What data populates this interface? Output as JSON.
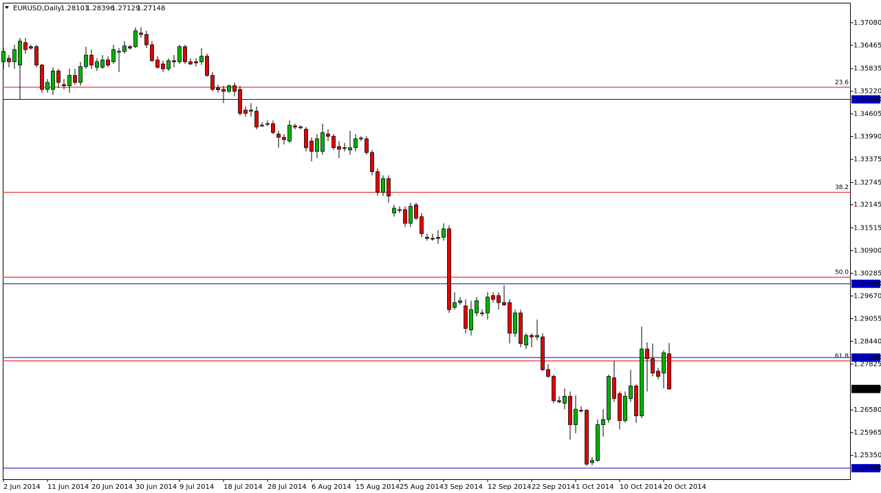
{
  "chart_data": {
    "type": "candlestick",
    "title": "EURUSD,Daily",
    "categories": [
      "2 Jun 2014",
      null,
      null,
      null,
      null,
      null,
      null,
      null,
      "11 Jun 2014",
      null,
      null,
      null,
      null,
      null,
      null,
      null,
      "20 Jun 2014",
      null,
      null,
      null,
      null,
      null,
      null,
      null,
      "30 Jun 2014",
      null,
      null,
      null,
      null,
      null,
      null,
      null,
      "9 Jul 2014",
      null,
      null,
      null,
      null,
      null,
      null,
      null,
      "18 Jul 2014",
      null,
      null,
      null,
      null,
      null,
      null,
      null,
      "28 Jul 2014",
      null,
      null,
      null,
      null,
      null,
      null,
      null,
      "6 Aug 2014",
      null,
      null,
      null,
      null,
      null,
      null,
      null,
      "15 Aug 2014",
      null,
      null,
      null,
      null,
      null,
      null,
      null,
      "25 Aug 2014",
      null,
      null,
      null,
      null,
      null,
      null,
      null,
      "3 Sep 2014",
      null,
      null,
      null,
      null,
      null,
      null,
      null,
      "12 Sep 2014",
      null,
      null,
      null,
      null,
      null,
      null,
      null,
      "22 Sep 2014",
      null,
      null,
      null,
      null,
      null,
      null,
      null,
      "1 Oct 2014",
      null,
      null,
      null,
      null,
      null,
      null,
      null,
      "10 Oct 2014",
      null,
      null,
      null,
      null,
      null,
      null,
      null,
      "20 Oct 2014",
      null
    ],
    "open": [
      1.3602,
      1.3611,
      1.3602,
      1.3593,
      1.3654,
      1.3643,
      1.3643,
      1.3593,
      1.3527,
      1.3527,
      1.3577,
      1.354,
      1.3537,
      1.3565,
      1.3546,
      1.3589,
      1.362,
      1.3587,
      1.3587,
      1.3607,
      1.3602,
      1.363,
      1.363,
      1.3643,
      1.3643,
      1.368,
      1.3676,
      1.3648,
      1.3607,
      1.3596,
      1.3583,
      1.3605,
      1.3602,
      1.3643,
      1.3602,
      1.3602,
      1.3602,
      1.3617,
      1.3565,
      1.3531,
      1.3527,
      1.3522,
      1.3537,
      1.3527,
      1.3471,
      1.3468,
      1.3468,
      1.343,
      1.3434,
      1.3434,
      1.3406,
      1.3397,
      1.3387,
      1.3428,
      1.3425,
      1.3419,
      1.3387,
      1.3359,
      1.3359,
      1.3406,
      1.34,
      1.3372,
      1.3369,
      1.3363,
      1.3369,
      1.3393,
      1.3393,
      1.3356,
      1.3304,
      1.3248,
      1.3285,
      1.3192,
      1.3201,
      1.3201,
      1.3164,
      1.3214,
      1.3182,
      1.3126,
      1.3123,
      1.3123,
      1.3126,
      1.3149,
      1.2936,
      1.2949,
      1.294,
      1.2875,
      1.2921,
      1.2921,
      1.2921,
      1.2968,
      1.2968,
      1.2949,
      1.2949,
      1.2866,
      1.2921,
      1.2834,
      1.286,
      1.2856,
      1.2856,
      1.2767,
      1.2749,
      1.2683,
      1.2676,
      1.2695,
      1.2618,
      1.2657,
      1.2657,
      1.2515,
      1.2521,
      1.2618,
      1.2632,
      1.2745,
      1.2702,
      1.2629,
      1.2689,
      1.2723,
      1.2642,
      1.2823,
      1.2797,
      1.2763,
      1.2758,
      1.28101
    ],
    "high": [
      1.3639,
      1.362,
      1.3648,
      1.3667,
      1.3667,
      1.3648,
      1.3648,
      1.3596,
      1.3555,
      1.3587,
      1.3583,
      1.3555,
      1.3583,
      1.3583,
      1.3602,
      1.3643,
      1.3635,
      1.3611,
      1.362,
      1.3617,
      1.3648,
      1.3639,
      1.3658,
      1.3648,
      1.3695,
      1.3695,
      1.3686,
      1.3658,
      1.3617,
      1.3605,
      1.3611,
      1.362,
      1.3648,
      1.3648,
      1.3611,
      1.3611,
      1.3639,
      1.3624,
      1.3574,
      1.354,
      1.3537,
      1.354,
      1.3546,
      1.3537,
      1.3481,
      1.349,
      1.3481,
      1.3438,
      1.3443,
      1.3443,
      1.3415,
      1.3406,
      1.3443,
      1.3434,
      1.343,
      1.3425,
      1.3397,
      1.3406,
      1.3434,
      1.3419,
      1.3406,
      1.3387,
      1.3382,
      1.3415,
      1.3406,
      1.34,
      1.34,
      1.3363,
      1.3313,
      1.3294,
      1.3294,
      1.3214,
      1.321,
      1.321,
      1.322,
      1.322,
      1.3192,
      1.3136,
      1.3136,
      1.3145,
      1.3164,
      1.3158,
      1.2977,
      1.2964,
      1.2958,
      1.2954,
      1.2964,
      1.293,
      1.2977,
      1.2977,
      1.2977,
      1.2996,
      1.2958,
      1.293,
      1.293,
      1.2866,
      1.2866,
      1.2903,
      1.2866,
      1.2782,
      1.2754,
      1.2695,
      1.2716,
      1.2708,
      1.2698,
      1.2668,
      1.266,
      1.253,
      1.2632,
      1.266,
      1.2754,
      1.2791,
      1.2708,
      1.2708,
      1.2767,
      1.2727,
      1.2884,
      1.2841,
      1.2838,
      1.2772,
      1.2819,
      1.28396
    ],
    "low": [
      1.3583,
      1.3587,
      1.3583,
      1.35,
      1.3624,
      1.3635,
      1.3587,
      1.3518,
      1.3518,
      1.3512,
      1.3531,
      1.3527,
      1.3518,
      1.354,
      1.3537,
      1.3583,
      1.3583,
      1.3577,
      1.3583,
      1.3587,
      1.3596,
      1.3574,
      1.3624,
      1.3635,
      1.3639,
      1.3667,
      1.3639,
      1.3602,
      1.3583,
      1.3574,
      1.3577,
      1.3587,
      1.3596,
      1.3596,
      1.3593,
      1.3589,
      1.3593,
      1.3561,
      1.3522,
      1.3518,
      1.349,
      1.3518,
      1.3509,
      1.3456,
      1.3453,
      1.3453,
      1.3419,
      1.3425,
      1.3428,
      1.3406,
      1.3369,
      1.3378,
      1.3382,
      1.3419,
      1.3419,
      1.3359,
      1.3332,
      1.3341,
      1.335,
      1.3387,
      1.3363,
      1.3341,
      1.3359,
      1.335,
      1.3359,
      1.3387,
      1.335,
      1.3294,
      1.3238,
      1.3238,
      1.322,
      1.3182,
      1.3192,
      1.3154,
      1.3154,
      1.3173,
      1.3126,
      1.3117,
      1.3117,
      1.3108,
      1.3117,
      1.2921,
      1.293,
      1.2943,
      1.2866,
      1.286,
      1.2912,
      1.2912,
      1.2903,
      1.2949,
      1.293,
      1.294,
      1.2838,
      1.2856,
      1.2828,
      1.2823,
      1.2828,
      1.2847,
      1.2763,
      1.2745,
      1.2676,
      1.2676,
      1.266,
      1.2577,
      1.2595,
      1.2651,
      1.2506,
      1.2508,
      1.2517,
      1.2586,
      1.2623,
      1.268,
      1.2605,
      1.2623,
      1.268,
      1.2623,
      1.2636,
      1.2708,
      1.2749,
      1.2741,
      1.2716,
      1.27129
    ],
    "close": [
      1.363,
      1.3602,
      1.3635,
      1.3658,
      1.3635,
      1.3639,
      1.3593,
      1.3527,
      1.3546,
      1.3577,
      1.3546,
      1.3537,
      1.3565,
      1.3546,
      1.3589,
      1.362,
      1.3593,
      1.3602,
      1.3607,
      1.3593,
      1.3635,
      1.3628,
      1.3645,
      1.3639,
      1.3686,
      1.3676,
      1.3648,
      1.3605,
      1.3587,
      1.3583,
      1.3605,
      1.3602,
      1.3643,
      1.3602,
      1.3596,
      1.3599,
      1.3617,
      1.3565,
      1.3527,
      1.3526,
      1.3522,
      1.3537,
      1.3522,
      1.3462,
      1.3462,
      1.3471,
      1.3425,
      1.3428,
      1.3432,
      1.341,
      1.3397,
      1.3391,
      1.343,
      1.3425,
      1.3423,
      1.3369,
      1.3359,
      1.3393,
      1.341,
      1.34,
      1.3369,
      1.3365,
      1.3367,
      1.3369,
      1.3393,
      1.3395,
      1.3356,
      1.3304,
      1.3248,
      1.3285,
      1.3238,
      1.3205,
      1.3199,
      1.3164,
      1.321,
      1.3178,
      1.3136,
      1.3123,
      1.3121,
      1.3126,
      1.3149,
      1.293,
      1.2949,
      1.2954,
      1.2879,
      1.293,
      1.2954,
      1.2919,
      1.2964,
      1.2958,
      1.2949,
      1.2943,
      1.2866,
      1.2921,
      1.2838,
      1.286,
      1.2856,
      1.286,
      1.2767,
      1.2749,
      1.2683,
      1.268,
      1.2695,
      1.2618,
      1.266,
      1.2655,
      1.2511,
      1.2521,
      1.2618,
      1.2632,
      1.2749,
      1.2689,
      1.2629,
      1.2695,
      1.2723,
      1.2642,
      1.2823,
      1.2797,
      1.2758,
      1.2749,
      1.2813,
      1.27148
    ],
    "up_color": "#00b400",
    "down_color": "#e60000",
    "ylim": [
      1.247,
      1.3762
    ],
    "yticks": [
      {
        "value": 1.3708,
        "label": "1.37080"
      },
      {
        "value": 1.36465,
        "label": "1.36465"
      },
      {
        "value": 1.35835,
        "label": "1.35835"
      },
      {
        "value": 1.3522,
        "label": "1.35220"
      },
      {
        "value": 1.34605,
        "label": "1.34605"
      },
      {
        "value": 1.3399,
        "label": "1.33990"
      },
      {
        "value": 1.33375,
        "label": "1.33375"
      },
      {
        "value": 1.32745,
        "label": "1.32745"
      },
      {
        "value": 1.32145,
        "label": "1.32145"
      },
      {
        "value": 1.31515,
        "label": "1.31515"
      },
      {
        "value": 1.309,
        "label": "1.30900"
      },
      {
        "value": 1.30285,
        "label": "1.30285"
      },
      {
        "value": 1.2967,
        "label": "1.29670"
      },
      {
        "value": 1.29055,
        "label": "1.29055"
      },
      {
        "value": 1.2844,
        "label": "1.28440"
      },
      {
        "value": 1.27825,
        "label": "1.27825"
      },
      {
        "value": 1.2658,
        "label": "1.26580"
      },
      {
        "value": 1.25965,
        "label": "1.25965"
      },
      {
        "value": 1.2535,
        "label": "1.25350"
      }
    ],
    "fib_levels": [
      {
        "value": 1.3533,
        "label": "23.6"
      },
      {
        "value": 1.3248,
        "label": "38.2"
      },
      {
        "value": 1.3018,
        "label": "50.0"
      },
      {
        "value": 1.2791,
        "label": "61.8"
      }
    ],
    "fib_color": "#e60000",
    "price_lines": [
      {
        "value": 1.35,
        "label": "1.35000"
      },
      {
        "value": 1.3,
        "label": "1.30000"
      },
      {
        "value": 1.28,
        "label": "1.28000"
      },
      {
        "value": 1.25,
        "label": "1.25000"
      }
    ],
    "price_line_color": "#0000c8",
    "grid": false
  }
}
